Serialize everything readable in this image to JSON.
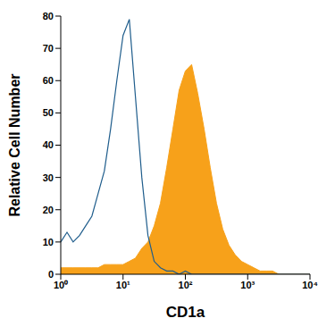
{
  "chart_data": {
    "type": "area",
    "x_label": "CD1a",
    "y_label": "Relative Cell Number",
    "log": "x",
    "grid": false,
    "x": [
      1,
      1.26,
      1.58,
      2,
      2.51,
      3.16,
      3.98,
      5.01,
      6.31,
      7.94,
      10,
      12.6,
      15.8,
      20,
      25.1,
      31.6,
      39.8,
      50.1,
      63.1,
      79.4,
      100,
      126,
      158,
      200,
      251,
      316,
      398,
      501,
      631,
      794,
      1000,
      1259,
      1585,
      1995,
      2512,
      3162,
      3981,
      5012,
      6310,
      7943,
      10000
    ],
    "series": [
      {
        "type": "area",
        "color": "#f7a11a",
        "values": [
          2,
          2,
          2,
          2,
          2,
          2,
          2,
          3,
          3,
          3,
          3,
          4,
          5,
          8,
          10,
          15,
          22,
          33,
          45,
          57,
          63,
          65,
          56,
          45,
          33,
          22,
          14,
          9,
          6,
          4,
          3,
          2,
          1,
          1,
          1,
          0,
          0,
          0,
          0,
          0,
          0
        ]
      },
      {
        "type": "line",
        "color": "#1f5d8c",
        "values": [
          10,
          13,
          10,
          12,
          15,
          18,
          25,
          32,
          45,
          60,
          74,
          79,
          55,
          30,
          12,
          4,
          2,
          1,
          1,
          0,
          1,
          0,
          0,
          0,
          0,
          0,
          0,
          0,
          0,
          0,
          0,
          0,
          0,
          0,
          0,
          0,
          0,
          0,
          0,
          0,
          0
        ]
      }
    ],
    "xlim": [
      1,
      10000
    ],
    "xticks": [
      {
        "value": 1,
        "label": "10⁰"
      },
      {
        "value": 10,
        "label": "10¹"
      },
      {
        "value": 100,
        "label": "10²"
      },
      {
        "value": 1000,
        "label": "10³"
      },
      {
        "value": 10000,
        "label": "10⁴"
      }
    ],
    "ylim": [
      0,
      80
    ],
    "yticks": [
      0,
      10,
      20,
      30,
      40,
      50,
      60,
      70,
      80
    ]
  }
}
